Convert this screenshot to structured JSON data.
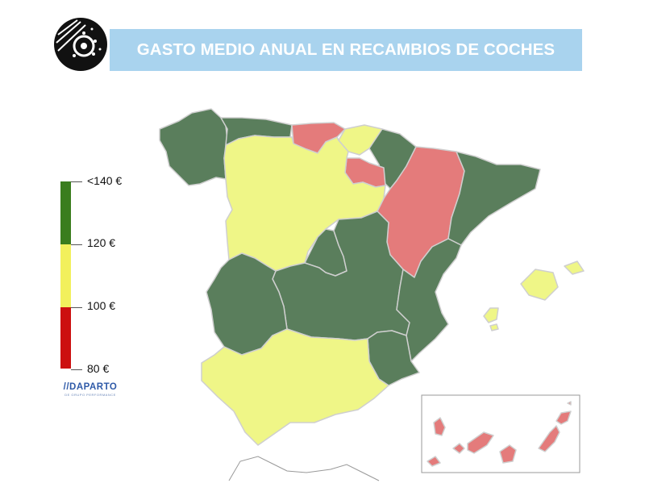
{
  "title": "GASTO MEDIO ANUAL EN RECAMBIOS DE COCHES",
  "legend": {
    "labels": [
      "<140 €",
      "120 €",
      "100 €",
      "80 €"
    ],
    "colors": {
      "high": "#3a7d1e",
      "mid": "#f2f05c",
      "low": "#cc1010"
    }
  },
  "brand": {
    "name": "//DAPARTO",
    "tagline": "DE GRUPO PERFORMANCE"
  },
  "palette": {
    "green": "#5a7e5c",
    "yellow": "#eff687",
    "red": "#e47b7b",
    "border": "#cfcfcf"
  },
  "regions": [
    {
      "name": "Galicia",
      "category": "green"
    },
    {
      "name": "Asturias",
      "category": "green"
    },
    {
      "name": "Cantabria",
      "category": "red"
    },
    {
      "name": "País Vasco",
      "category": "yellow"
    },
    {
      "name": "Navarra",
      "category": "green"
    },
    {
      "name": "La Rioja",
      "category": "red"
    },
    {
      "name": "Aragón",
      "category": "red"
    },
    {
      "name": "Cataluña",
      "category": "green"
    },
    {
      "name": "Castilla y León",
      "category": "yellow"
    },
    {
      "name": "Madrid",
      "category": "green"
    },
    {
      "name": "Castilla-La Mancha",
      "category": "green"
    },
    {
      "name": "Extremadura",
      "category": "green"
    },
    {
      "name": "Comunidad Valenciana",
      "category": "green"
    },
    {
      "name": "Murcia",
      "category": "green"
    },
    {
      "name": "Andalucía",
      "category": "yellow"
    },
    {
      "name": "Islas Baleares",
      "category": "yellow"
    },
    {
      "name": "Islas Canarias",
      "category": "red"
    }
  ]
}
